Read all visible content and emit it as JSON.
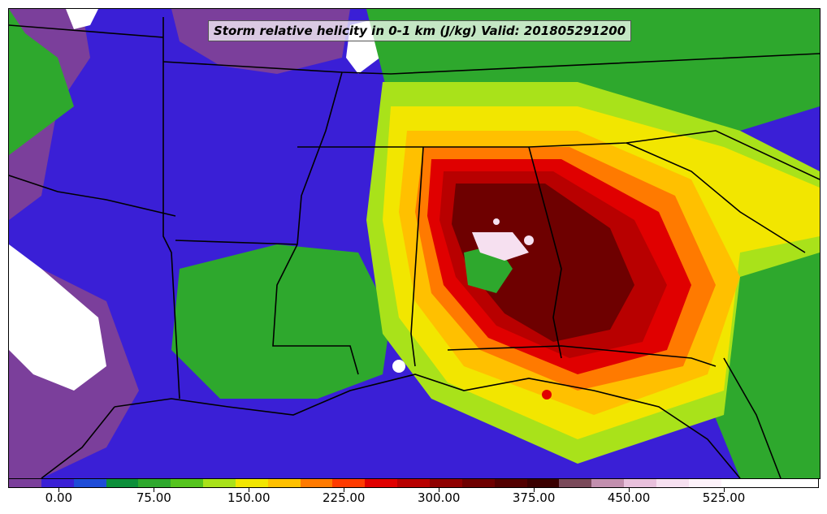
{
  "title": "Storm relative helicity in 0-1 km (J/kg) Valid: 201805291200",
  "colorbar": {
    "colors": [
      "#7b3f9b",
      "#3a1fd6",
      "#1e4cd8",
      "#0c8f3a",
      "#2ea82d",
      "#55c41e",
      "#a9e21a",
      "#f2e600",
      "#ffc000",
      "#ff7a00",
      "#ff3b00",
      "#e00000",
      "#b80000",
      "#8f0000",
      "#6e0000",
      "#520000",
      "#3a0000",
      "#7a4a5a",
      "#c28fae",
      "#e8c0dc",
      "#f6e0f0",
      "#fdf2fa",
      "#ffffff",
      "#ffffff",
      "#ffffff"
    ],
    "tick_labels": [
      "0.00",
      "75.00",
      "150.00",
      "225.00",
      "300.00",
      "375.00",
      "450.00",
      "525.00"
    ],
    "tick_values": [
      0,
      75,
      150,
      225,
      300,
      375,
      450,
      525
    ],
    "range": [
      -40,
      600
    ]
  }
}
